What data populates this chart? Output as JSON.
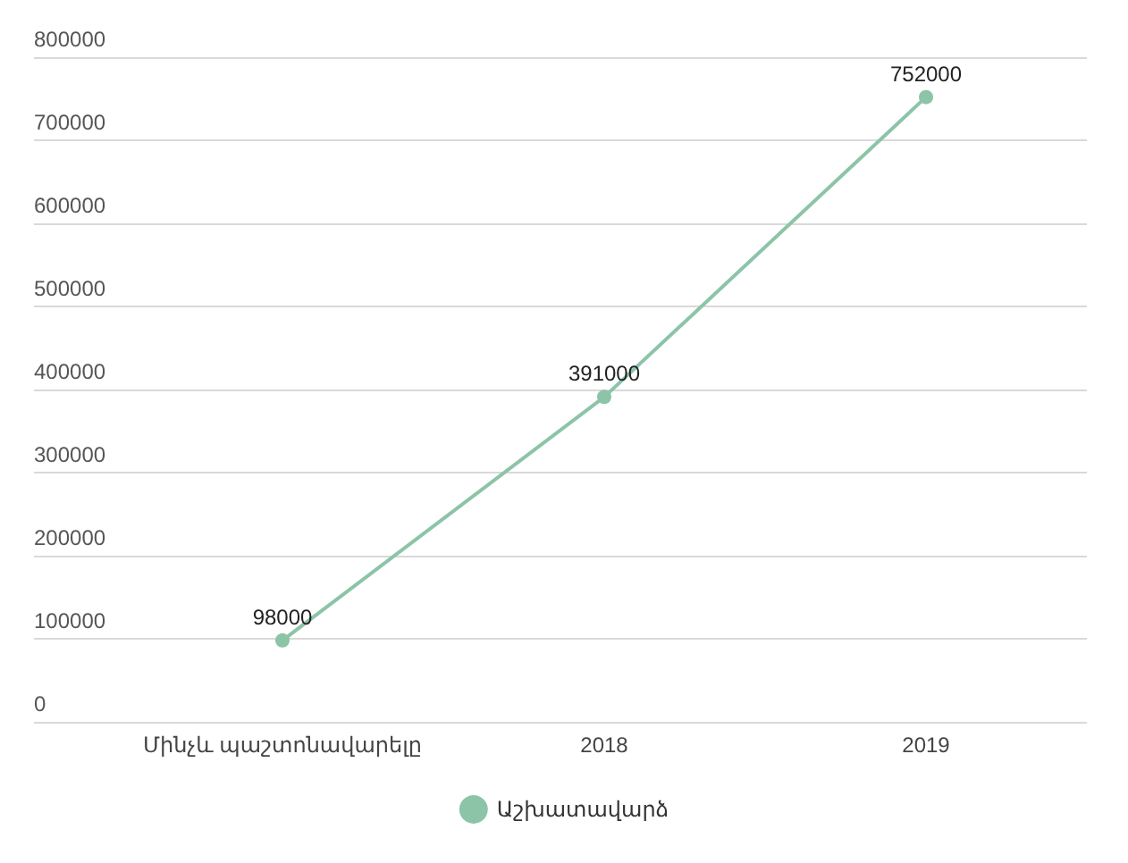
{
  "chart_data": {
    "type": "line",
    "categories": [
      "Մինչև պաշտոնավարելը",
      "2018",
      "2019"
    ],
    "series": [
      {
        "name": "Աշխատավարձ",
        "color": "#8cc4a8",
        "values": [
          98000,
          391000,
          752000
        ]
      }
    ],
    "ylim": [
      0,
      800000
    ],
    "yticks": [
      0,
      100000,
      200000,
      300000,
      400000,
      500000,
      600000,
      700000,
      800000
    ],
    "grid": "y",
    "legend": "bottom",
    "marker": "circle",
    "line_style": "solid",
    "data_labels": true
  }
}
